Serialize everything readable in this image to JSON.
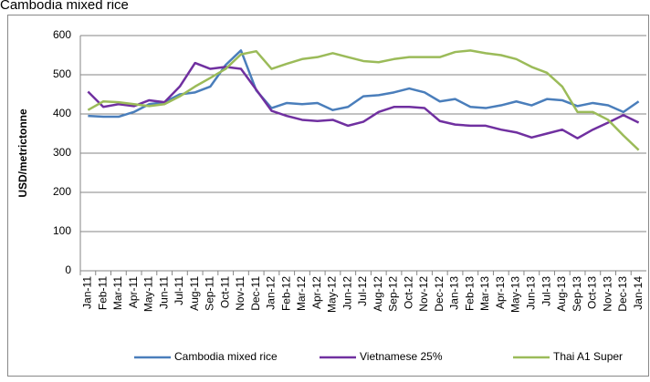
{
  "chart_data": {
    "type": "line",
    "title": "Cambodia mixed rice",
    "y_label": "USD/metrictonne",
    "categories": [
      "Jan-11",
      "Feb-11",
      "Mar-11",
      "Apr-11",
      "May-11",
      "Jun-11",
      "Jul-11",
      "Aug-11",
      "Sep-11",
      "Oct-11",
      "Nov-11",
      "Dec-11",
      "Jan-12",
      "Feb-12",
      "Mar-12",
      "Apr-12",
      "May-12",
      "Jun-12",
      "Jul-12",
      "Aug-12",
      "Sep-12",
      "Oct-12",
      "Nov-12",
      "Dec-12",
      "Jan-13",
      "Feb-13",
      "Mar-13",
      "Apr-13",
      "May-13",
      "Jun-13",
      "Jul-13",
      "Aug-13",
      "Sep-13",
      "Oct-13",
      "Nov-13",
      "Dec-13",
      "Jan-14"
    ],
    "series": [
      {
        "name": "Cambodia mixed rice",
        "color": "#4a7ebb",
        "values": [
          395,
          393,
          393,
          405,
          425,
          430,
          450,
          455,
          470,
          525,
          562,
          460,
          415,
          428,
          425,
          428,
          410,
          418,
          445,
          448,
          455,
          465,
          455,
          432,
          438,
          418,
          415,
          422,
          432,
          422,
          438,
          435,
          420,
          428,
          422,
          405,
          432
        ]
      },
      {
        "name": "Vietnamese 25%",
        "color": "#7030a0",
        "values": [
          457,
          418,
          425,
          420,
          435,
          430,
          470,
          530,
          515,
          520,
          515,
          462,
          408,
          395,
          385,
          382,
          385,
          370,
          380,
          405,
          418,
          418,
          415,
          382,
          373,
          370,
          370,
          360,
          353,
          340,
          350,
          360,
          338,
          360,
          378,
          397,
          378
        ]
      },
      {
        "name": "Thai A1 Super",
        "color": "#9bbb59",
        "values": [
          410,
          432,
          430,
          425,
          420,
          425,
          445,
          470,
          492,
          515,
          552,
          560,
          515,
          528,
          540,
          545,
          555,
          545,
          535,
          532,
          540,
          545,
          545,
          545,
          558,
          562,
          555,
          550,
          540,
          520,
          505,
          470,
          405,
          405,
          385,
          345,
          308
        ]
      }
    ],
    "ylim": [
      0,
      600
    ],
    "yticks": [
      0,
      100,
      200,
      300,
      400,
      500,
      600
    ],
    "grid": true,
    "legend": "bottom"
  }
}
